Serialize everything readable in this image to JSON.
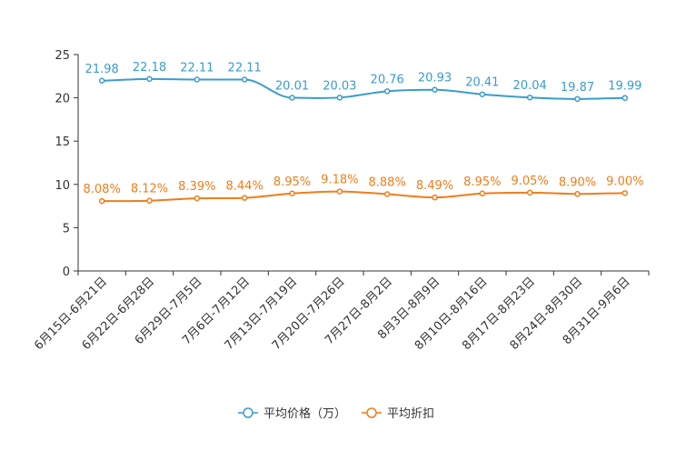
{
  "chart_data": {
    "type": "line",
    "title": "",
    "xlabel": "",
    "ylabel": "",
    "ylim": [
      0,
      25
    ],
    "yticks": [
      0,
      5,
      10,
      15,
      20,
      25
    ],
    "grid": false,
    "legend_position": "bottom-center",
    "categories": [
      "6月15日-6月21日",
      "6月22日-6月28日",
      "6月29日-7月5日",
      "7月6日-7月12日",
      "7月13日-7月19日",
      "7月20日-7月26日",
      "7月27日-8月2日",
      "8月3日-8月9日",
      "8月10日-8月16日",
      "8月17日-8月23日",
      "8月24日-8月30日",
      "8月31日-9月6日"
    ],
    "series": [
      {
        "name": "平均价格（万）",
        "color": "#3a9ccc",
        "values": [
          21.98,
          22.18,
          22.11,
          22.11,
          20.01,
          20.03,
          20.76,
          20.93,
          20.41,
          20.04,
          19.87,
          19.99
        ],
        "labels": [
          "21.98",
          "22.18",
          "22.11",
          "22.11",
          "20.01",
          "20.03",
          "20.76",
          "20.93",
          "20.41",
          "20.04",
          "19.87",
          "19.99"
        ]
      },
      {
        "name": "平均折扣",
        "color": "#f07d1a",
        "values": [
          8.08,
          8.12,
          8.39,
          8.44,
          8.95,
          9.18,
          8.88,
          8.49,
          8.95,
          9.05,
          8.9,
          9.0
        ],
        "labels": [
          "8.08%",
          "8.12%",
          "8.39%",
          "8.44%",
          "8.95%",
          "9.18%",
          "8.88%",
          "8.49%",
          "8.95%",
          "9.05%",
          "8.90%",
          "9.00%"
        ]
      }
    ]
  }
}
